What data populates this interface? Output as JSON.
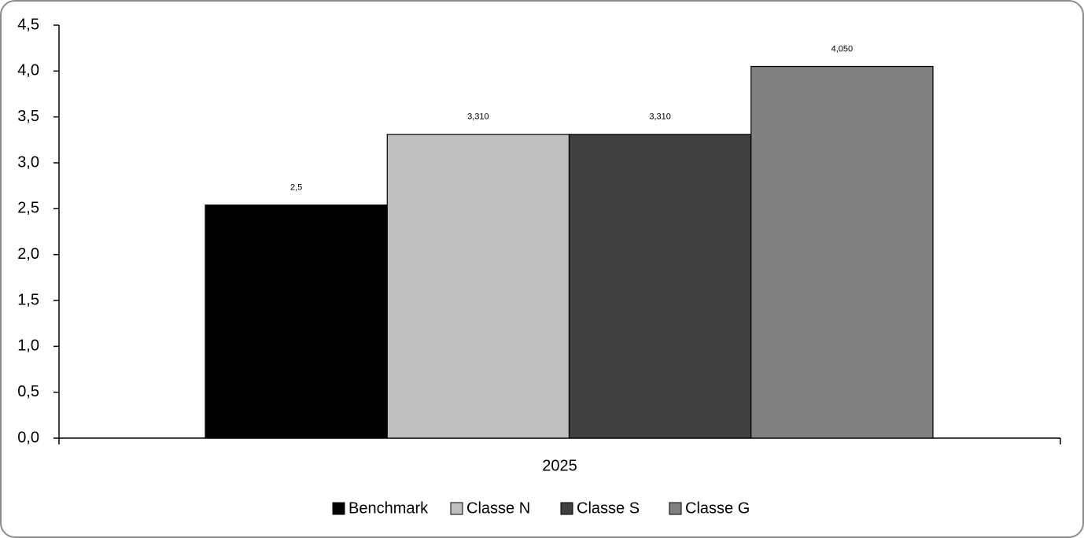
{
  "chart_data": {
    "type": "bar",
    "categories": [
      "2025"
    ],
    "series": [
      {
        "name": "Benchmark",
        "color": "#000000",
        "values": [
          2.54
        ],
        "value_labels": [
          "2,5"
        ]
      },
      {
        "name": "Classe N",
        "color": "#bfbfbf",
        "values": [
          3.31
        ],
        "value_labels": [
          "3,310"
        ]
      },
      {
        "name": "Classe S",
        "color": "#404040",
        "values": [
          3.31
        ],
        "value_labels": [
          "3,310"
        ]
      },
      {
        "name": "Classe G",
        "color": "#808080",
        "values": [
          4.05
        ],
        "value_labels": [
          "4,050"
        ]
      }
    ],
    "ylim": [
      0,
      4.5
    ],
    "yticks": [
      {
        "value": 0,
        "label": "0,0"
      },
      {
        "value": 0.5,
        "label": "0,5"
      },
      {
        "value": 1,
        "label": "1,0"
      },
      {
        "value": 1.5,
        "label": "1,5"
      },
      {
        "value": 2,
        "label": "2,0"
      },
      {
        "value": 2.5,
        "label": "2,5"
      },
      {
        "value": 3,
        "label": "3,0"
      },
      {
        "value": 3.5,
        "label": "3,5"
      },
      {
        "value": 4,
        "label": "4,0"
      },
      {
        "value": 4.5,
        "label": "4,5"
      }
    ],
    "grid": false,
    "legend": "bottom"
  }
}
